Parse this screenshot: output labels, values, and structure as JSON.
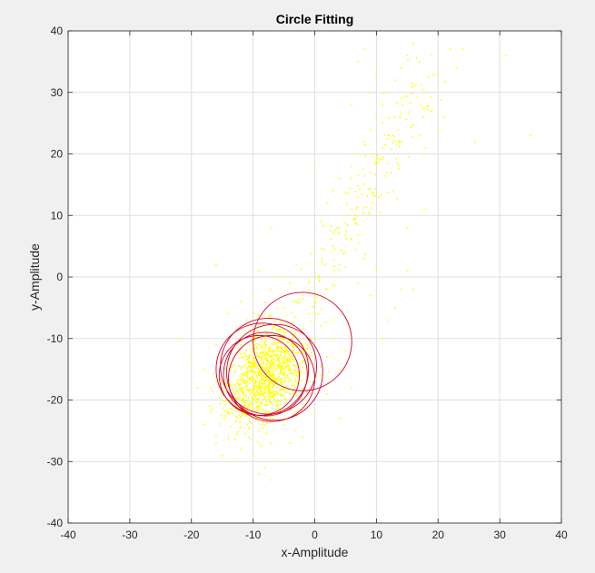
{
  "chart_data": {
    "type": "scatter",
    "title": "Circle Fitting",
    "xlabel": "x-Amplitude",
    "ylabel": "y-Amplitude",
    "xlim": [
      -40,
      40
    ],
    "ylim": [
      -40,
      40
    ],
    "xticks": [
      "-40",
      "-30",
      "-20",
      "-10",
      "0",
      "10",
      "20",
      "30",
      "40"
    ],
    "yticks": [
      "-40",
      "-30",
      "-20",
      "-10",
      "0",
      "10",
      "20",
      "30",
      "40"
    ],
    "grid": true,
    "legend": "none",
    "colors": {
      "points": "#ffff00",
      "circles": "#d4002a",
      "background": "#f0f0f0",
      "axes": "#ffffff",
      "grid": "#dfdfdf"
    },
    "circles": [
      {
        "cx": -2.0,
        "cy": -10.5,
        "r": 8.0
      },
      {
        "cx": -7.5,
        "cy": -14.5,
        "r": 7.8
      },
      {
        "cx": -8.5,
        "cy": -15.0,
        "r": 7.5
      },
      {
        "cx": -6.5,
        "cy": -15.5,
        "r": 7.8
      },
      {
        "cx": -9.0,
        "cy": -16.0,
        "r": 6.5
      },
      {
        "cx": -7.0,
        "cy": -16.5,
        "r": 7.0
      },
      {
        "cx": -8.0,
        "cy": -15.8,
        "r": 6.8
      }
    ],
    "scatter_points": {
      "core": [
        [
          -12,
          -15
        ],
        [
          -11,
          -17
        ],
        [
          -10,
          -14
        ],
        [
          -9,
          -18
        ],
        [
          -8,
          -13
        ],
        [
          -7,
          -16
        ],
        [
          -6,
          -19
        ],
        [
          -5,
          -12
        ],
        [
          -4,
          -15
        ],
        [
          -3,
          -17
        ],
        [
          -10,
          -20
        ],
        [
          -8,
          -22
        ],
        [
          -6,
          -21
        ],
        [
          -12,
          -11
        ],
        [
          -9,
          -9
        ],
        [
          -6,
          -10
        ],
        [
          -4,
          -8
        ],
        [
          -2,
          -12
        ],
        [
          -1,
          -14
        ],
        [
          0,
          -10
        ],
        [
          -13,
          -19
        ],
        [
          -14,
          -22
        ],
        [
          -11,
          -24
        ],
        [
          -9,
          -25
        ],
        [
          -7,
          -27
        ],
        [
          -5,
          -24
        ],
        [
          -3,
          -22
        ],
        [
          -1,
          -19
        ],
        [
          1,
          -16
        ],
        [
          2,
          -13
        ],
        [
          -15,
          -14
        ],
        [
          -16,
          -17
        ],
        [
          -13,
          -9
        ],
        [
          -11,
          -7
        ],
        [
          -8,
          -6
        ],
        [
          -5,
          -5
        ],
        [
          -3,
          -4
        ],
        [
          -1,
          -6
        ],
        [
          1,
          -8
        ],
        [
          3,
          -10
        ],
        [
          -17,
          -21
        ],
        [
          -18,
          -24
        ],
        [
          -16,
          -27
        ],
        [
          -14,
          -26
        ],
        [
          -12,
          -28
        ],
        [
          -10,
          -29
        ],
        [
          -8,
          -31
        ],
        [
          -6,
          -30
        ],
        [
          -4,
          -27
        ],
        [
          -2,
          -26
        ],
        [
          -19,
          -18
        ],
        [
          -20,
          -22
        ],
        [
          -18,
          -15
        ],
        [
          -16,
          -11
        ],
        [
          -14,
          -6
        ],
        [
          -12,
          -4
        ],
        [
          -10,
          -3
        ],
        [
          -7,
          -2
        ],
        [
          -4,
          -1
        ],
        [
          -2,
          -3
        ],
        [
          0,
          -22
        ],
        [
          2,
          -19
        ],
        [
          4,
          -15
        ],
        [
          5,
          -12
        ],
        [
          3,
          -7
        ],
        [
          1,
          -3
        ],
        [
          -1,
          -1
        ],
        [
          -3,
          2
        ],
        [
          -6,
          0
        ],
        [
          -9,
          1
        ],
        [
          -11,
          -13
        ],
        [
          -9,
          -11
        ],
        [
          -7,
          -12
        ],
        [
          -5,
          -14
        ],
        [
          -3,
          -16
        ],
        [
          -8,
          -18
        ],
        [
          -10,
          -16
        ],
        [
          -12,
          -18
        ],
        [
          -6,
          -17
        ],
        [
          -4,
          -19
        ],
        [
          -20,
          -13
        ],
        [
          -22,
          -10
        ],
        [
          -16,
          2
        ],
        [
          -7,
          8
        ],
        [
          -13,
          -30
        ],
        [
          -15,
          -29
        ],
        [
          -9,
          -32
        ],
        [
          -7,
          -33
        ],
        [
          4,
          -23
        ],
        [
          6,
          -18
        ]
      ],
      "tail": [
        [
          0,
          -4
        ],
        [
          2,
          -2
        ],
        [
          3,
          0
        ],
        [
          4,
          2
        ],
        [
          5,
          4
        ],
        [
          6,
          6
        ],
        [
          7,
          -1
        ],
        [
          8,
          3
        ],
        [
          9,
          -3
        ],
        [
          10,
          1
        ],
        [
          3,
          5
        ],
        [
          4,
          8
        ],
        [
          5,
          10
        ],
        [
          6,
          11
        ],
        [
          7,
          13
        ],
        [
          8,
          15
        ],
        [
          9,
          17
        ],
        [
          10,
          19
        ],
        [
          11,
          21
        ],
        [
          12,
          23
        ],
        [
          6,
          18
        ],
        [
          7,
          20
        ],
        [
          8,
          22
        ],
        [
          9,
          24
        ],
        [
          10,
          26
        ],
        [
          11,
          28
        ],
        [
          12,
          30
        ],
        [
          13,
          32
        ],
        [
          14,
          34
        ],
        [
          15,
          36
        ],
        [
          16,
          38
        ],
        [
          17,
          35
        ],
        [
          18,
          30
        ],
        [
          19,
          27
        ],
        [
          20,
          33
        ],
        [
          21,
          26
        ],
        [
          22,
          37
        ],
        [
          23,
          34
        ],
        [
          15,
          40
        ],
        [
          17,
          40
        ],
        [
          2,
          12
        ],
        [
          1,
          9
        ],
        [
          3,
          14
        ],
        [
          4,
          16
        ],
        [
          0,
          18
        ],
        [
          9,
          30
        ],
        [
          10,
          33
        ],
        [
          8,
          37
        ],
        [
          7,
          35
        ],
        [
          11,
          25
        ],
        [
          13,
          26
        ],
        [
          14,
          29
        ],
        [
          16,
          31
        ],
        [
          18,
          21
        ],
        [
          20,
          24
        ],
        [
          12,
          -7
        ],
        [
          11,
          -10
        ],
        [
          13,
          -5
        ],
        [
          14,
          -2
        ],
        [
          15,
          1
        ],
        [
          26,
          22
        ],
        [
          31,
          36
        ],
        [
          35,
          23
        ],
        [
          18,
          11
        ],
        [
          15,
          8
        ],
        [
          6,
          28
        ],
        [
          14,
          22
        ],
        [
          19,
          36
        ],
        [
          24,
          37
        ],
        [
          16,
          -2
        ]
      ]
    }
  }
}
